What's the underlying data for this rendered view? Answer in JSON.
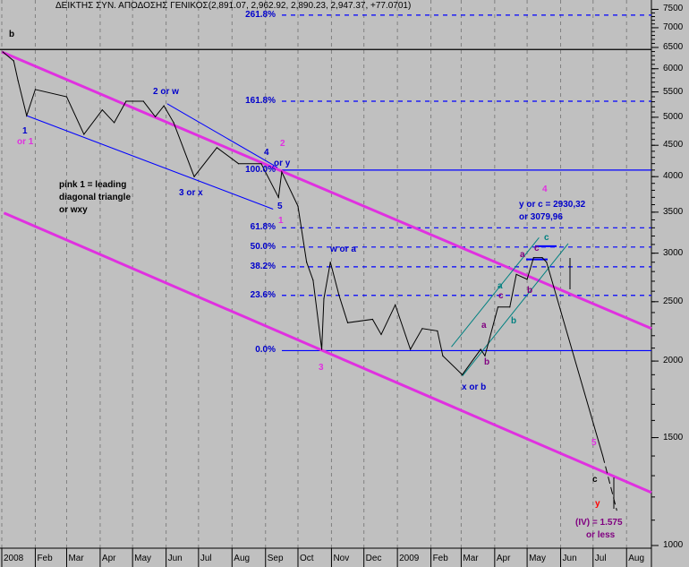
{
  "chart_data": {
    "type": "line",
    "title": "ΔΕΙΚΤΗΣ ΣΥΝ. ΑΠΟΔΟΣΗΣ ΓΕΝΙΚΟΣ(2,891.07, 2,962.92, 2,890.23, 2,947.37, +77.0701)",
    "y_scale": "log",
    "ylim": [
      1000,
      7600
    ],
    "xlim": [
      "2008-01-01",
      "2009-08-31"
    ],
    "grid": "vertical dashed at month starts",
    "y_ticks": [
      7500,
      7000,
      6500,
      6000,
      5500,
      5000,
      4500,
      4000,
      3500,
      3000,
      2500,
      2000,
      1500,
      1000
    ],
    "x_ticks": [
      {
        "date": "2008-01-01",
        "label": "2008"
      },
      {
        "date": "2008-02-01",
        "label": "Feb"
      },
      {
        "date": "2008-03-01",
        "label": "Mar"
      },
      {
        "date": "2008-04-01",
        "label": "Apr"
      },
      {
        "date": "2008-05-01",
        "label": "May"
      },
      {
        "date": "2008-06-01",
        "label": "Jun"
      },
      {
        "date": "2008-07-01",
        "label": "Jul"
      },
      {
        "date": "2008-08-01",
        "label": "Aug"
      },
      {
        "date": "2008-09-01",
        "label": "Sep"
      },
      {
        "date": "2008-10-01",
        "label": "Oct"
      },
      {
        "date": "2008-11-01",
        "label": "Nov"
      },
      {
        "date": "2008-12-01",
        "label": "Dec"
      },
      {
        "date": "2009-01-01",
        "label": "2009"
      },
      {
        "date": "2009-02-01",
        "label": "Feb"
      },
      {
        "date": "2009-03-01",
        "label": "Mar"
      },
      {
        "date": "2009-04-01",
        "label": "Apr"
      },
      {
        "date": "2009-05-01",
        "label": "May"
      },
      {
        "date": "2009-06-01",
        "label": "Jun"
      },
      {
        "date": "2009-07-01",
        "label": "Jul"
      },
      {
        "date": "2009-08-01",
        "label": "Aug"
      }
    ],
    "series": [
      {
        "color": "#000000",
        "points": [
          [
            "2008-01-02",
            6390
          ],
          [
            "2008-01-12",
            6180
          ],
          [
            "2008-01-16",
            5740
          ],
          [
            "2008-01-24",
            5030
          ],
          [
            "2008-02-01",
            5550
          ],
          [
            "2008-03-01",
            5400
          ],
          [
            "2008-03-17",
            4690
          ],
          [
            "2008-04-03",
            5140
          ],
          [
            "2008-04-14",
            4900
          ],
          [
            "2008-04-25",
            5310
          ],
          [
            "2008-05-11",
            5310
          ],
          [
            "2008-05-22",
            5010
          ],
          [
            "2008-05-30",
            5220
          ],
          [
            "2008-06-08",
            4900
          ],
          [
            "2008-06-27",
            4000
          ],
          [
            "2008-07-18",
            4460
          ],
          [
            "2008-08-07",
            4200
          ],
          [
            "2008-08-28",
            4200
          ],
          [
            "2008-09-13",
            3700
          ],
          [
            "2008-09-16",
            4070
          ],
          [
            "2008-10-01",
            3580
          ],
          [
            "2008-10-09",
            2900
          ],
          [
            "2008-10-15",
            2710
          ],
          [
            "2008-10-23",
            2090
          ],
          [
            "2008-10-25",
            2530
          ],
          [
            "2008-10-31",
            2900
          ],
          [
            "2008-11-08",
            2560
          ],
          [
            "2008-11-16",
            2310
          ],
          [
            "2008-12-09",
            2340
          ],
          [
            "2008-12-17",
            2210
          ],
          [
            "2008-12-30",
            2470
          ],
          [
            "2009-01-13",
            2090
          ],
          [
            "2009-01-24",
            2260
          ],
          [
            "2009-02-07",
            2240
          ],
          [
            "2009-02-12",
            2040
          ],
          [
            "2009-03-02",
            1900
          ],
          [
            "2009-03-19",
            2090
          ],
          [
            "2009-03-23",
            2040
          ],
          [
            "2009-04-04",
            2450
          ],
          [
            "2009-04-15",
            2450
          ],
          [
            "2009-04-21",
            2770
          ],
          [
            "2009-05-01",
            2720
          ],
          [
            "2009-05-07",
            2950
          ],
          [
            "2009-05-15",
            2950
          ],
          [
            "2009-05-19",
            2900
          ]
        ]
      }
    ],
    "projection": [
      [
        "2009-05-19",
        2900
      ],
      [
        "2009-07-10",
        1400
      ],
      [
        "2009-07-23",
        1140
      ]
    ],
    "horizontal_levels": [
      {
        "value": 7340,
        "label": "261.8%",
        "style": "dashed",
        "color": "#0000ff"
      },
      {
        "value": 5310,
        "label": "161.8%",
        "style": "dashed",
        "color": "#0000ff"
      },
      {
        "value": 4100,
        "label": "100.0%",
        "style": "solid",
        "color": "#0000ff"
      },
      {
        "value": 3300,
        "label": "61.8%",
        "style": "dashed",
        "color": "#0000ff"
      },
      {
        "value": 3070,
        "label": "50.0%",
        "style": "dashed",
        "color": "#0000ff"
      },
      {
        "value": 2850,
        "label": "38.2%",
        "style": "dashed",
        "color": "#0000ff"
      },
      {
        "value": 2560,
        "label": "23.6%",
        "style": "dashed",
        "color": "#0000ff"
      },
      {
        "value": 2080,
        "label": "0.0%",
        "style": "solid",
        "color": "#0000ff"
      }
    ],
    "black_level": 6450,
    "trendlines": [
      {
        "from": [
          "2008-01-01",
          6390
        ],
        "to": [
          "2009-08-24",
          2260
        ],
        "color": "#e030e0"
      },
      {
        "from": [
          "2008-01-03",
          3490
        ],
        "to": [
          "2009-08-24",
          1220
        ],
        "color": "#e030e0"
      },
      {
        "from": [
          "2008-01-24",
          5030
        ],
        "to": [
          "2008-09-08",
          3540
        ],
        "color": "#0000ff"
      },
      {
        "from": [
          "2008-06-02",
          5260
        ],
        "to": [
          "2008-09-12",
          4140
        ],
        "color": "#0000ff"
      },
      {
        "from": [
          "2009-02-20",
          2110
        ],
        "to": [
          "2009-05-12",
          3180
        ],
        "color": "#008080"
      },
      {
        "from": [
          "2009-03-02",
          1890
        ],
        "to": [
          "2009-06-08",
          3110
        ],
        "color": "#008080"
      }
    ],
    "annotations": [
      {
        "text": "b",
        "color": "#000000"
      },
      {
        "text": "1",
        "color": "#0000cc"
      },
      {
        "text": "or 1",
        "color": "#e030e0"
      },
      {
        "text": "2 or w",
        "color": "#0000cc"
      },
      {
        "text": "3 or x",
        "color": "#0000cc"
      },
      {
        "text": "4",
        "color": "#0000cc"
      },
      {
        "text": "or y",
        "color": "#0000cc"
      },
      {
        "text": "2",
        "color": "#e030e0"
      },
      {
        "text": "5",
        "color": "#0000cc"
      },
      {
        "text": "1",
        "color": "#e030e0"
      },
      {
        "text": "pink 1 = leading",
        "color": "#000000"
      },
      {
        "text": "diagonal triangle",
        "color": "#000000"
      },
      {
        "text": "or wxy",
        "color": "#000000"
      },
      {
        "text": "w or a",
        "color": "#0000cc"
      },
      {
        "text": "3",
        "color": "#e030e0"
      },
      {
        "text": "x or b",
        "color": "#0000cc"
      },
      {
        "text": "4",
        "color": "#e030e0"
      },
      {
        "text": "y or c = 2930,32",
        "color": "#0000cc"
      },
      {
        "text": "or 3079,96",
        "color": "#0000cc"
      },
      {
        "text": "c",
        "color": "#008080"
      },
      {
        "text": "a",
        "color": "#800080"
      },
      {
        "text": "c",
        "color": "#800080"
      },
      {
        "text": "b",
        "color": "#800080"
      },
      {
        "text": "a",
        "color": "#008080"
      },
      {
        "text": "c",
        "color": "#800080"
      },
      {
        "text": "b",
        "color": "#008080"
      },
      {
        "text": "a",
        "color": "#800080"
      },
      {
        "text": "b",
        "color": "#800080"
      },
      {
        "text": "5",
        "color": "#e030e0"
      },
      {
        "text": "c",
        "color": "#000000"
      },
      {
        "text": "y",
        "color": "#ff0000"
      },
      {
        "text": "(IV) = 1.575",
        "color": "#800080"
      },
      {
        "text": "or  less",
        "color": "#800080"
      }
    ]
  }
}
